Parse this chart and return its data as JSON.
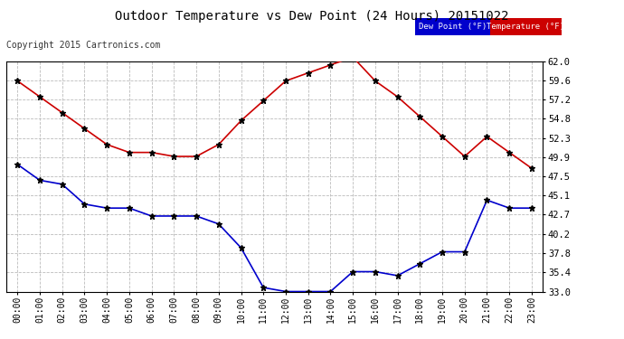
{
  "title": "Outdoor Temperature vs Dew Point (24 Hours) 20151022",
  "copyright": "Copyright 2015 Cartronics.com",
  "hours": [
    "00:00",
    "01:00",
    "02:00",
    "03:00",
    "04:00",
    "05:00",
    "06:00",
    "07:00",
    "08:00",
    "09:00",
    "10:00",
    "11:00",
    "12:00",
    "13:00",
    "14:00",
    "15:00",
    "16:00",
    "17:00",
    "18:00",
    "19:00",
    "20:00",
    "21:00",
    "22:00",
    "23:00"
  ],
  "temperature": [
    59.5,
    57.5,
    55.5,
    53.5,
    51.5,
    50.5,
    50.5,
    50.0,
    50.0,
    51.5,
    54.5,
    57.0,
    59.5,
    60.5,
    61.5,
    62.5,
    59.5,
    57.5,
    55.0,
    52.5,
    50.0,
    52.5,
    50.5,
    48.5
  ],
  "dewpoint": [
    49.0,
    47.0,
    46.5,
    44.0,
    43.5,
    43.5,
    42.5,
    42.5,
    42.5,
    41.5,
    38.5,
    33.5,
    33.0,
    33.0,
    33.0,
    35.5,
    35.5,
    35.0,
    36.5,
    38.0,
    38.0,
    44.5,
    43.5,
    43.5
  ],
  "temp_color": "#cc0000",
  "dew_color": "#0000cc",
  "marker_color": "#000000",
  "ylim_min": 33.0,
  "ylim_max": 62.0,
  "yticks": [
    33.0,
    35.4,
    37.8,
    40.2,
    42.7,
    45.1,
    47.5,
    49.9,
    52.3,
    54.8,
    57.2,
    59.6,
    62.0
  ],
  "background_color": "#ffffff",
  "grid_color": "#bbbbbb",
  "legend_dew_bg": "#0000cc",
  "legend_temp_bg": "#cc0000",
  "legend_text_color": "#ffffff"
}
